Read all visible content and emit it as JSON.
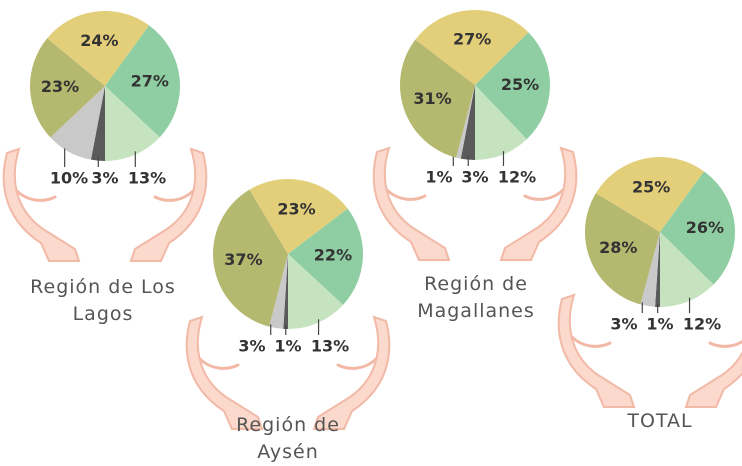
{
  "chart_data": [
    {
      "type": "pie",
      "title": "Región de Los Lagos",
      "values": [
        3,
        10,
        23,
        24,
        27,
        13
      ],
      "value_labels": [
        "3%",
        "10%",
        "23%",
        "24%",
        "27%",
        "13%"
      ],
      "colors": [
        "#5a5a5a",
        "#c9c9c9",
        "#b5b86f",
        "#e3cf7a",
        "#8fcea3",
        "#c6e3bf"
      ]
    },
    {
      "type": "pie",
      "title": "Región de Aysén",
      "values": [
        1,
        3,
        37,
        23,
        22,
        13
      ],
      "value_labels": [
        "1%",
        "3%",
        "37%",
        "23%",
        "22%",
        "13%"
      ],
      "colors": [
        "#5a5a5a",
        "#c9c9c9",
        "#b5b86f",
        "#e3cf7a",
        "#8fcea3",
        "#c6e3bf"
      ]
    },
    {
      "type": "pie",
      "title": "Región de Magallanes",
      "values": [
        3,
        1,
        31,
        27,
        25,
        12
      ],
      "value_labels": [
        "3%",
        "1%",
        "31%",
        "27%",
        "25%",
        "12%"
      ],
      "colors": [
        "#5a5a5a",
        "#c9c9c9",
        "#b5b86f",
        "#e3cf7a",
        "#8fcea3",
        "#c6e3bf"
      ]
    },
    {
      "type": "pie",
      "title": "TOTAL",
      "values": [
        1,
        3,
        28,
        25,
        26,
        12
      ],
      "value_labels": [
        "1%",
        "3%",
        "28%",
        "25%",
        "26%",
        "12%"
      ],
      "colors": [
        "#5a5a5a",
        "#c9c9c9",
        "#b5b86f",
        "#e3cf7a",
        "#8fcea3",
        "#c6e3bf"
      ]
    }
  ]
}
